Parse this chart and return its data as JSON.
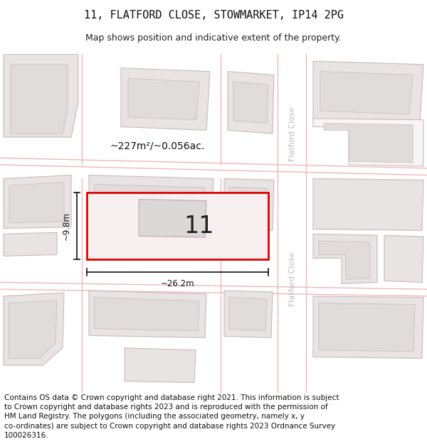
{
  "title": "11, FLATFORD CLOSE, STOWMARKET, IP14 2PG",
  "subtitle": "Map shows position and indicative extent of the property.",
  "footer_line1": "Contains OS data © Crown copyright and database right 2021. This information is subject",
  "footer_line2": "to Crown copyright and database rights 2023 and is reproduced with the permission of",
  "footer_line3": "HM Land Registry. The polygons (including the associated geometry, namely x, y",
  "footer_line4": "co-ordinates) are subject to Crown copyright and database rights 2023 Ordnance Survey",
  "footer_line5": "100026316.",
  "bg_color": "#ffffff",
  "map_bg": "#ffffff",
  "road_color": "#f0b8b8",
  "building_color": "#e8e4e4",
  "building_outline": "#ccb8b8",
  "highlight_color": "#dd0000",
  "street_label_color": "#bbbbbb",
  "dimension_color": "#111111",
  "area_text": "~227m²/~0.056ac.",
  "plot_number": "11",
  "width_label": "~26.2m",
  "height_label": "~9.8m",
  "street_name": "Flatford Close",
  "title_fontsize": 11,
  "subtitle_fontsize": 9,
  "footer_fontsize": 7.5
}
